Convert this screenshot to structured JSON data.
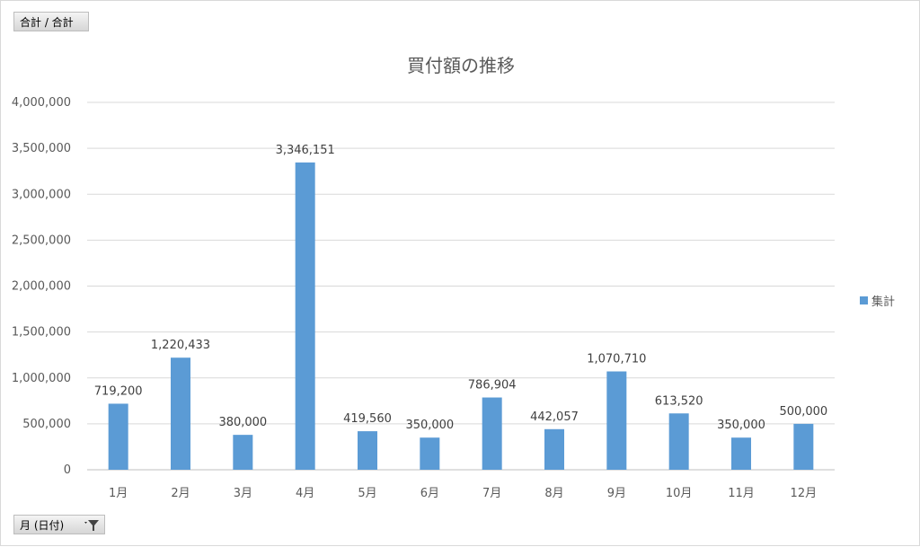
{
  "pivot": {
    "value_field_label": "合計 / 合計",
    "axis_field_label": "月 (日付)"
  },
  "chart_data": {
    "type": "bar",
    "title": "買付額の推移",
    "categories": [
      "1月",
      "2月",
      "3月",
      "4月",
      "5月",
      "6月",
      "7月",
      "8月",
      "9月",
      "10月",
      "11月",
      "12月"
    ],
    "series": [
      {
        "name": "集計",
        "values": [
          719200,
          1220433,
          380000,
          3346151,
          419560,
          350000,
          786904,
          442057,
          1070710,
          613520,
          350000,
          500000
        ],
        "color": "#5b9bd5"
      }
    ],
    "ylim": [
      0,
      4000000
    ],
    "yticks": [
      0,
      500000,
      1000000,
      1500000,
      2000000,
      2500000,
      3000000,
      3500000,
      4000000
    ],
    "grid": true,
    "data_labels": true,
    "legend_position": "right"
  }
}
